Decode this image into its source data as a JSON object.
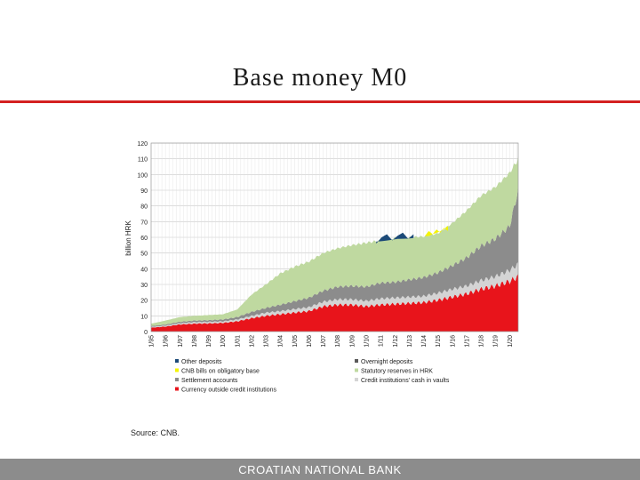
{
  "slide": {
    "title": "Base money M0",
    "source": "Source: CNB.",
    "footer": "CROATIAN NATIONAL BANK"
  },
  "chart_data": {
    "type": "area",
    "stacked": true,
    "ylabel": "billion HRK",
    "ylim": [
      0,
      120
    ],
    "y_ticks": [
      0,
      10,
      20,
      30,
      40,
      50,
      60,
      70,
      80,
      90,
      100,
      110,
      120
    ],
    "x_tick_labels": [
      "1/95",
      "1/96",
      "1/97",
      "1/98",
      "1/99",
      "1/00",
      "1/01",
      "1/02",
      "1/03",
      "1/04",
      "1/05",
      "1/06",
      "1/07",
      "1/08",
      "1/09",
      "1/10",
      "1/11",
      "1/12",
      "1/13",
      "1/14",
      "1/15",
      "1/16",
      "1/17",
      "1/18",
      "1/19",
      "1/20"
    ],
    "grid": true,
    "x_years": [
      1995,
      1996,
      1997,
      1998,
      1999,
      2000,
      2001,
      2002,
      2003,
      2004,
      2005,
      2006,
      2007,
      2008,
      2009,
      2010,
      2011,
      2012,
      2013,
      2014,
      2015,
      2016,
      2017,
      2018,
      2019,
      2020,
      2020.6
    ],
    "series": [
      {
        "name": "Currency outside credit institutions",
        "color": "#e8141b",
        "values": [
          2.5,
          3.2,
          4.5,
          5,
          5.2,
          5.5,
          6.5,
          8.5,
          10,
          11,
          12,
          13,
          16,
          17,
          17,
          16,
          17,
          17.5,
          18,
          18.5,
          20,
          22,
          24,
          27,
          29,
          32,
          35
        ]
      },
      {
        "name": "Credit institutions' cash in vaults",
        "color": "#d4d4d4",
        "values": [
          0.5,
          0.6,
          0.8,
          1,
          1,
          1,
          1.2,
          1.5,
          2,
          2,
          2.3,
          2.5,
          3,
          3.5,
          3.5,
          3.5,
          4,
          4,
          4,
          4,
          4.5,
          5,
          5,
          5.5,
          6,
          7,
          8
        ]
      },
      {
        "name": "Settlement accounts",
        "color": "#8c8c8c",
        "values": [
          0.5,
          0.7,
          0.9,
          1,
          1,
          1.2,
          1.5,
          2.5,
          3,
          4,
          5,
          6,
          7,
          8,
          8.5,
          9,
          10,
          10,
          11,
          12,
          13,
          15,
          18,
          22,
          24,
          28,
          47
        ]
      },
      {
        "name": "Overnight deposits",
        "color": "#5a5a5a",
        "values": [
          0,
          0,
          0,
          0,
          0,
          0,
          0,
          0,
          0,
          0,
          0,
          0,
          0,
          0,
          0,
          0,
          0,
          0,
          0,
          0,
          0,
          0,
          0,
          0,
          0,
          0,
          0
        ]
      },
      {
        "name": "Statutory reserves in HRK",
        "color": "#bfd9a0",
        "values": [
          1.5,
          2.5,
          3,
          3,
          3.3,
          3.3,
          4.8,
          11,
          15,
          20,
          22,
          23,
          24,
          24.5,
          26,
          28,
          27,
          28,
          27,
          26,
          25,
          27,
          30,
          32,
          33,
          34,
          20
        ]
      },
      {
        "name": "CNB bills on obligatory base",
        "color": "#f4f400",
        "values": [
          0,
          0,
          0,
          0,
          0,
          0,
          0,
          0,
          0,
          0,
          0,
          0,
          0,
          0,
          0,
          0,
          0,
          0,
          0,
          0,
          0,
          0,
          0,
          0,
          0,
          0,
          0
        ]
      },
      {
        "name": "Other deposits",
        "color": "#1c4a78",
        "values": [
          0,
          0,
          0,
          0,
          0,
          0,
          0,
          0,
          0,
          0,
          0,
          0,
          0,
          0,
          0,
          0,
          0,
          0,
          0,
          0,
          0,
          0,
          0,
          0,
          0,
          0,
          0
        ]
      }
    ],
    "overlays": [
      {
        "name": "Other deposits",
        "color": "#1c4a78",
        "from": 2010.7,
        "to": 2013.3,
        "top": [
          56,
          60,
          62,
          58,
          61,
          63,
          59,
          62
        ]
      },
      {
        "name": "CNB bills on obligatory base",
        "color": "#f4f400",
        "from": 2014.1,
        "to": 2015.7,
        "top": [
          61,
          64,
          62,
          65,
          63,
          66,
          64
        ]
      }
    ],
    "legend": {
      "placement": "bottom",
      "left_column": [
        {
          "label": "Other deposits",
          "color": "#1c4a78"
        },
        {
          "label": "CNB bills on obligatory base",
          "color": "#f4f400"
        },
        {
          "label": "Settlement accounts",
          "color": "#8c8c8c"
        },
        {
          "label": "Currency outside credit institutions",
          "color": "#e8141b"
        }
      ],
      "right_column": [
        {
          "label": "Overnight deposits",
          "color": "#5a5a5a"
        },
        {
          "label": "Statutory reserves in HRK",
          "color": "#bfd9a0"
        },
        {
          "label": "Credit institutions' cash in vaults",
          "color": "#d4d4d4"
        }
      ]
    }
  }
}
